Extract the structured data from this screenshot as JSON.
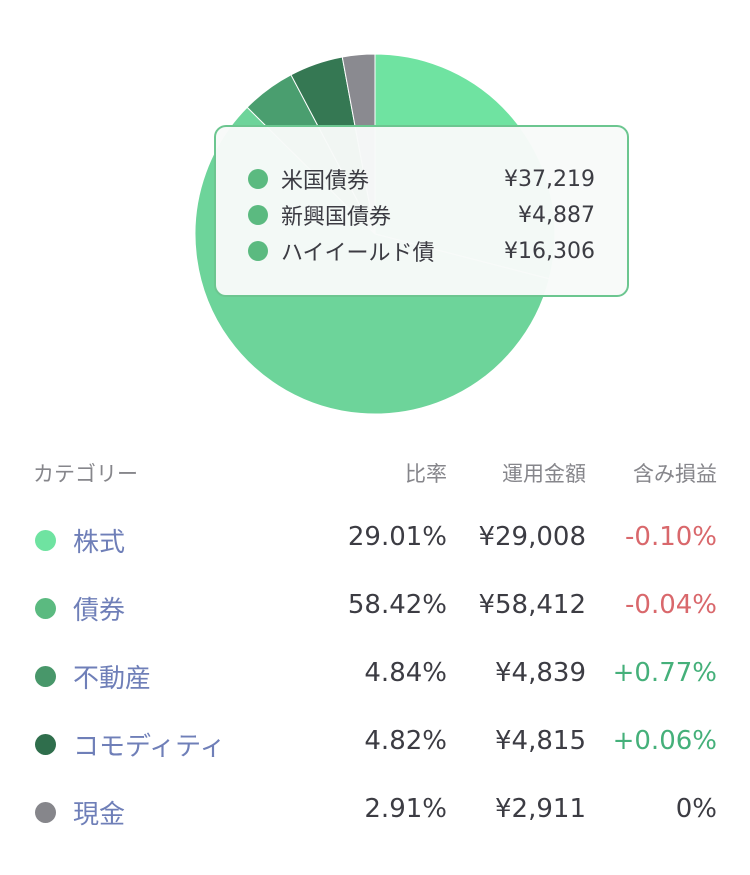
{
  "chart_data": {
    "type": "pie",
    "start_angle_deg": 0,
    "direction": "clockwise",
    "slices": [
      {
        "label": "株式",
        "value": 29.01,
        "color": "#6fe3a1"
      },
      {
        "label": "債券",
        "value": 58.42,
        "color": "#6dd49a"
      },
      {
        "label": "不動産",
        "value": 4.84,
        "color": "#4a9e6f"
      },
      {
        "label": "コモディティ",
        "value": 4.82,
        "color": "#357853"
      },
      {
        "label": "現金",
        "value": 2.91,
        "color": "#8a8a90"
      }
    ]
  },
  "tooltip": {
    "items": [
      {
        "label": "米国債券",
        "value": "¥37,219",
        "color": "#5bba80"
      },
      {
        "label": "新興国債券",
        "value": "¥4,887",
        "color": "#5bba80"
      },
      {
        "label": "ハイイールド債",
        "value": "¥16,306",
        "color": "#5bba80"
      }
    ]
  },
  "table": {
    "headers": {
      "category": "カテゴリー",
      "ratio": "比率",
      "amount": "運用金額",
      "pl": "含み損益"
    },
    "rows": [
      {
        "name": "株式",
        "ratio": "29.01%",
        "amount": "¥29,008",
        "pl": "-0.10%",
        "dot_color": "#6fe3a1",
        "pl_color": "#d9686c"
      },
      {
        "name": "債券",
        "ratio": "58.42%",
        "amount": "¥58,412",
        "pl": "-0.04%",
        "dot_color": "#5bba80",
        "pl_color": "#d9686c"
      },
      {
        "name": "不動産",
        "ratio": "4.84%",
        "amount": "¥4,839",
        "pl": "+0.77%",
        "dot_color": "#48976a",
        "pl_color": "#45b07a"
      },
      {
        "name": "コモディティ",
        "ratio": "4.82%",
        "amount": "¥4,815",
        "pl": "+0.06%",
        "dot_color": "#2f6e4c",
        "pl_color": "#45b07a"
      },
      {
        "name": "現金",
        "ratio": "2.91%",
        "amount": "¥2,911",
        "pl": "0%",
        "dot_color": "#86868b",
        "pl_color": "#3c3c43"
      }
    ]
  }
}
